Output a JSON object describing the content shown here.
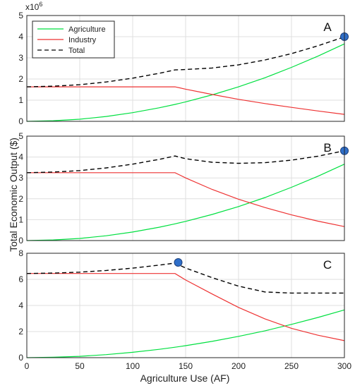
{
  "figure": {
    "ylabel": "Total Economic Output ($)",
    "xlabel": "Agriculture Use (AF)",
    "exponent_base": "x10",
    "exponent_power": "6"
  },
  "colors": {
    "agriculture": "#00e040",
    "industry": "#ee3333",
    "total": "#000000",
    "marker": "#2f6fc9",
    "grid": "#dfdfdf"
  },
  "legend": {
    "placement": "top-left of panel A",
    "entries": [
      {
        "name": "Agriculture",
        "style": "solid",
        "color": "#00e040"
      },
      {
        "name": "Industry",
        "style": "solid",
        "color": "#ee3333"
      },
      {
        "name": "Total",
        "style": "dashed",
        "color": "#000000"
      }
    ]
  },
  "chart_data": [
    {
      "type": "line",
      "panel_label": "A",
      "xlim": [
        0,
        300
      ],
      "ylim": [
        0,
        5
      ],
      "x_ticks": [
        "0",
        "50",
        "100",
        "150",
        "200",
        "250",
        "300"
      ],
      "y_ticks": [
        "0",
        "1",
        "2",
        "3",
        "4",
        "5"
      ],
      "grid": true,
      "x": [
        0,
        25,
        50,
        75,
        100,
        125,
        140,
        150,
        175,
        200,
        225,
        250,
        275,
        300
      ],
      "series": [
        {
          "name": "Agriculture",
          "values": [
            0,
            0.03,
            0.1,
            0.23,
            0.41,
            0.64,
            0.8,
            0.92,
            1.25,
            1.63,
            2.06,
            2.55,
            3.08,
            3.66
          ]
        },
        {
          "name": "Industry",
          "values": [
            1.63,
            1.63,
            1.63,
            1.63,
            1.63,
            1.63,
            1.63,
            1.52,
            1.27,
            1.04,
            0.84,
            0.66,
            0.49,
            0.33
          ]
        },
        {
          "name": "Total",
          "values": [
            1.63,
            1.66,
            1.73,
            1.86,
            2.04,
            2.27,
            2.43,
            2.45,
            2.52,
            2.67,
            2.9,
            3.2,
            3.57,
            3.99
          ]
        }
      ],
      "marker": {
        "x": 300,
        "y": 4.0
      }
    },
    {
      "type": "line",
      "panel_label": "B",
      "xlim": [
        0,
        300
      ],
      "ylim": [
        0,
        5
      ],
      "x_ticks": [
        "0",
        "50",
        "100",
        "150",
        "200",
        "250",
        "300"
      ],
      "y_ticks": [
        "0",
        "1",
        "2",
        "3",
        "4",
        "5"
      ],
      "grid": true,
      "x": [
        0,
        25,
        50,
        75,
        100,
        125,
        140,
        150,
        175,
        200,
        225,
        250,
        275,
        300
      ],
      "series": [
        {
          "name": "Agriculture",
          "values": [
            0,
            0.03,
            0.1,
            0.23,
            0.41,
            0.64,
            0.8,
            0.92,
            1.25,
            1.63,
            2.06,
            2.55,
            3.08,
            3.66
          ]
        },
        {
          "name": "Industry",
          "values": [
            3.25,
            3.25,
            3.25,
            3.25,
            3.25,
            3.25,
            3.25,
            3.0,
            2.45,
            1.98,
            1.58,
            1.23,
            0.93,
            0.67
          ]
        },
        {
          "name": "Total",
          "values": [
            3.25,
            3.28,
            3.35,
            3.48,
            3.66,
            3.89,
            4.05,
            3.92,
            3.75,
            3.7,
            3.73,
            3.85,
            4.04,
            4.3
          ]
        }
      ],
      "marker": {
        "x": 300,
        "y": 4.3
      }
    },
    {
      "type": "line",
      "panel_label": "C",
      "xlim": [
        0,
        300
      ],
      "ylim": [
        0,
        8
      ],
      "x_ticks": [
        "0",
        "50",
        "100",
        "150",
        "200",
        "250",
        "300"
      ],
      "y_ticks": [
        "0",
        "2",
        "4",
        "6",
        "8"
      ],
      "grid": true,
      "x": [
        0,
        25,
        50,
        75,
        100,
        125,
        140,
        150,
        175,
        200,
        225,
        250,
        275,
        300
      ],
      "series": [
        {
          "name": "Agriculture",
          "values": [
            0,
            0.03,
            0.1,
            0.23,
            0.41,
            0.64,
            0.8,
            0.92,
            1.25,
            1.63,
            2.06,
            2.55,
            3.08,
            3.66
          ]
        },
        {
          "name": "Industry",
          "values": [
            6.45,
            6.45,
            6.45,
            6.45,
            6.45,
            6.45,
            6.45,
            5.95,
            4.88,
            3.85,
            2.97,
            2.25,
            1.72,
            1.3
          ]
        },
        {
          "name": "Total",
          "values": [
            6.45,
            6.48,
            6.55,
            6.68,
            6.86,
            7.09,
            7.25,
            6.87,
            6.13,
            5.48,
            5.03,
            4.95,
            4.95,
            4.95
          ]
        }
      ],
      "marker": {
        "x": 143,
        "y": 7.3
      }
    }
  ]
}
